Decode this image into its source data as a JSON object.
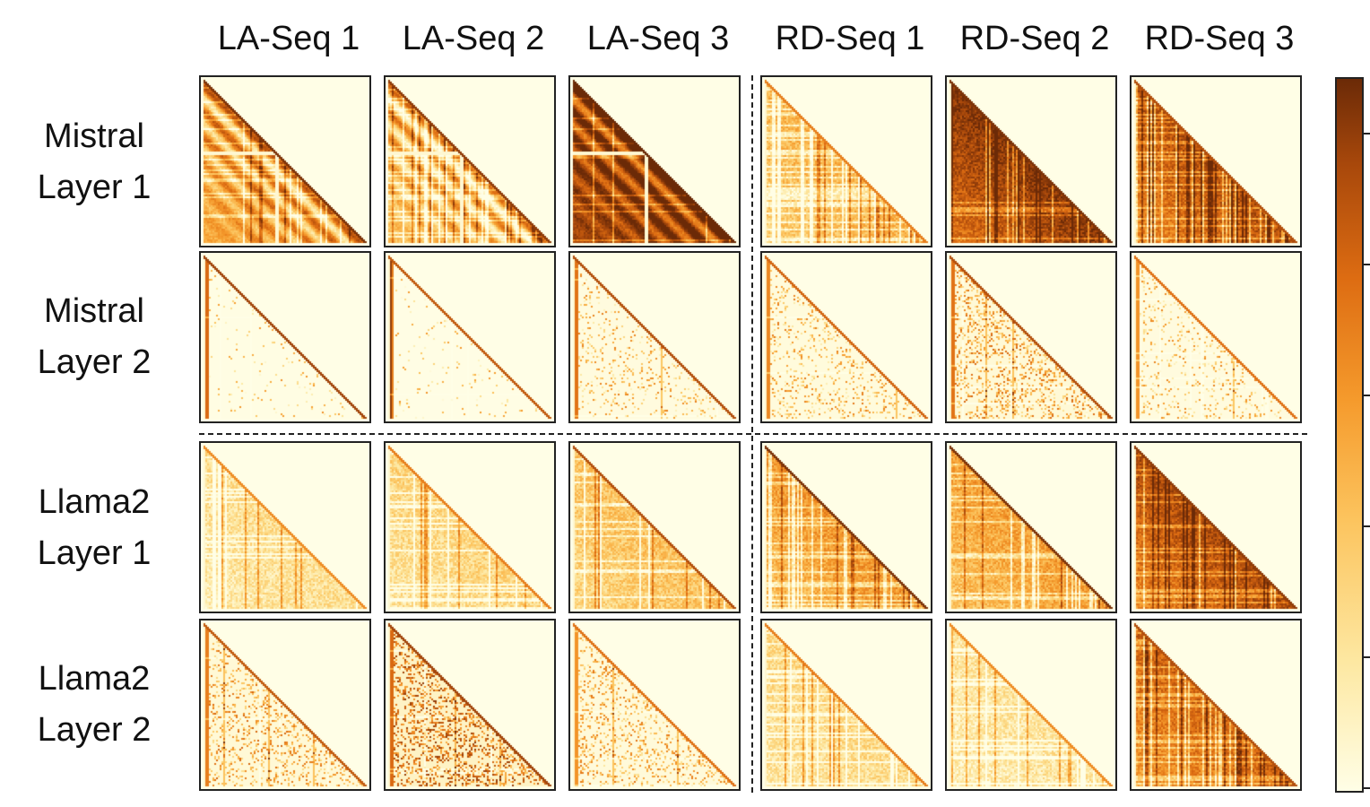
{
  "chart_data": {
    "type": "heatmap",
    "description_grid": "4 rows x 6 columns of lower-triangular attention heatmaps",
    "columns": [
      "LA-Seq 1",
      "LA-Seq 2",
      "LA-Seq 3",
      "RD-Seq 1",
      "RD-Seq 2",
      "RD-Seq 3"
    ],
    "rows": [
      {
        "model": "Mistral",
        "layer": "Layer 1"
      },
      {
        "model": "Mistral",
        "layer": "Layer 2"
      },
      {
        "model": "Llama2",
        "layer": "Layer 1"
      },
      {
        "model": "Llama2",
        "layer": "Layer 2"
      }
    ],
    "panels": [
      [
        {
          "base": 0.45,
          "diag": 0.95,
          "density": 0.2,
          "stripes": 0.3,
          "gap": 0.45,
          "style": "band"
        },
        {
          "base": 0.35,
          "diag": 0.9,
          "density": 0.25,
          "stripes": 0.5,
          "gap": 0.45,
          "style": "band"
        },
        {
          "base": 0.85,
          "diag": 1.0,
          "density": 0.1,
          "stripes": 0.2,
          "gap": 0.45,
          "style": "band"
        },
        {
          "base": 0.35,
          "diag": 0.6,
          "density": 0.5,
          "stripes": 0.8,
          "gap": 0.0,
          "style": "grid"
        },
        {
          "base": 0.82,
          "diag": 0.95,
          "density": 0.2,
          "stripes": 0.3,
          "gap": 0.0,
          "style": "grid"
        },
        {
          "base": 0.7,
          "diag": 0.8,
          "density": 0.35,
          "stripes": 0.7,
          "gap": 0.0,
          "style": "grid"
        }
      ],
      [
        {
          "base": 0.04,
          "diag": 0.85,
          "density": 0.04,
          "stripes": 0.05,
          "gap": 0.0,
          "style": "sparse"
        },
        {
          "base": 0.03,
          "diag": 0.75,
          "density": 0.03,
          "stripes": 0.05,
          "gap": 0.0,
          "style": "sparse"
        },
        {
          "base": 0.1,
          "diag": 0.8,
          "density": 0.12,
          "stripes": 0.05,
          "gap": 0.0,
          "style": "sparse"
        },
        {
          "base": 0.12,
          "diag": 0.7,
          "density": 0.15,
          "stripes": 0.1,
          "gap": 0.0,
          "style": "sparse"
        },
        {
          "base": 0.2,
          "diag": 0.8,
          "density": 0.25,
          "stripes": 0.1,
          "gap": 0.0,
          "style": "sparse"
        },
        {
          "base": 0.1,
          "diag": 0.65,
          "density": 0.12,
          "stripes": 0.1,
          "gap": 0.0,
          "style": "sparse"
        }
      ],
      [
        {
          "base": 0.18,
          "diag": 0.55,
          "density": 0.15,
          "stripes": 0.3,
          "gap": 0.0,
          "style": "grid"
        },
        {
          "base": 0.22,
          "diag": 0.6,
          "density": 0.18,
          "stripes": 0.3,
          "gap": 0.0,
          "style": "grid"
        },
        {
          "base": 0.3,
          "diag": 0.8,
          "density": 0.2,
          "stripes": 0.35,
          "gap": 0.0,
          "style": "grid"
        },
        {
          "base": 0.45,
          "diag": 0.95,
          "density": 0.25,
          "stripes": 0.4,
          "gap": 0.0,
          "style": "grid"
        },
        {
          "base": 0.42,
          "diag": 0.95,
          "density": 0.22,
          "stripes": 0.4,
          "gap": 0.0,
          "style": "grid"
        },
        {
          "base": 0.72,
          "diag": 0.9,
          "density": 0.3,
          "stripes": 0.5,
          "gap": 0.0,
          "style": "grid"
        }
      ],
      [
        {
          "base": 0.2,
          "diag": 0.75,
          "density": 0.2,
          "stripes": 0.1,
          "gap": 0.0,
          "style": "sparse"
        },
        {
          "base": 0.4,
          "diag": 0.85,
          "density": 0.3,
          "stripes": 0.1,
          "gap": 0.0,
          "style": "sparse"
        },
        {
          "base": 0.15,
          "diag": 0.65,
          "density": 0.2,
          "stripes": 0.1,
          "gap": 0.0,
          "style": "sparse"
        },
        {
          "base": 0.2,
          "diag": 0.6,
          "density": 0.25,
          "stripes": 0.4,
          "gap": 0.0,
          "style": "grid"
        },
        {
          "base": 0.15,
          "diag": 0.55,
          "density": 0.2,
          "stripes": 0.4,
          "gap": 0.0,
          "style": "grid"
        },
        {
          "base": 0.62,
          "diag": 0.8,
          "density": 0.3,
          "stripes": 0.6,
          "gap": 0.0,
          "style": "grid"
        }
      ]
    ],
    "colormap": {
      "low": "#fffee6",
      "stops": [
        "#fffee6",
        "#fde8a2",
        "#fcc45e",
        "#f59a2c",
        "#dd6c12",
        "#a8480b",
        "#6b2a07"
      ]
    },
    "colorbar_ticks": 6
  },
  "colors": {
    "border": "#222222",
    "text": "#111111"
  }
}
